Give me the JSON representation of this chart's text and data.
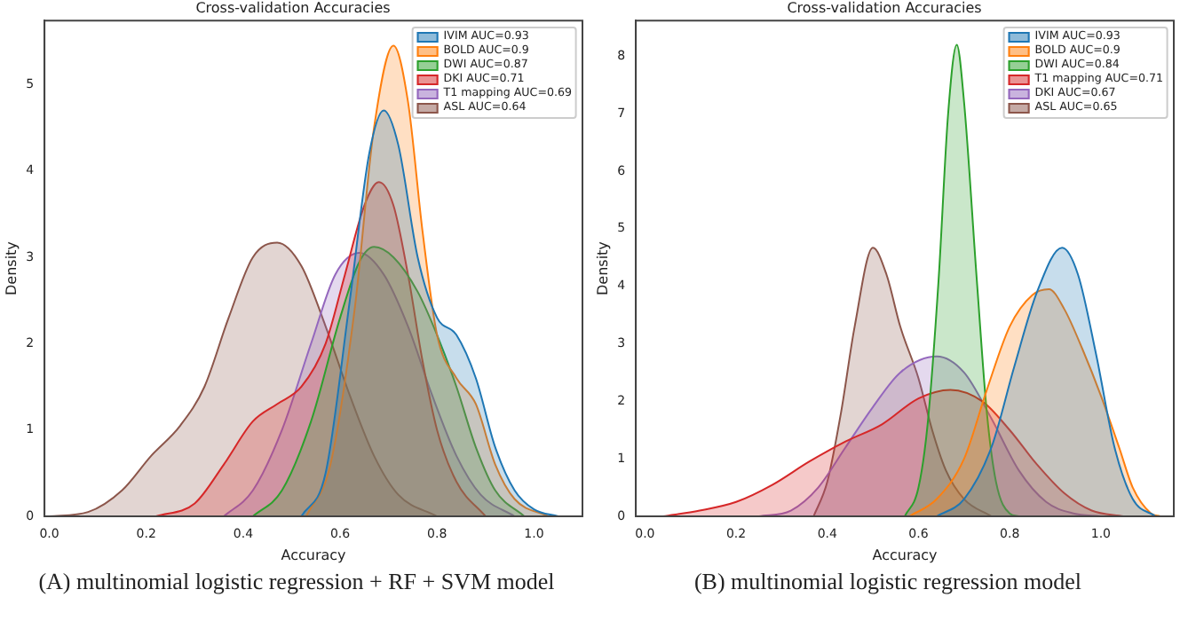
{
  "chart_data": [
    {
      "type": "area",
      "title": "Cross-validation Accuracies",
      "xlabel": "Accuracy",
      "ylabel": "Density",
      "legend": "top right",
      "grid": false,
      "marker": "none",
      "xlim": [
        -0.01,
        1.1
      ],
      "ylim": [
        0,
        5.74
      ],
      "xticks": [
        {
          "value": 0,
          "label": "0.0"
        },
        {
          "value": 0.2,
          "label": "0.2"
        },
        {
          "value": 0.4,
          "label": "0.4"
        },
        {
          "value": 0.6,
          "label": "0.6"
        },
        {
          "value": 0.8,
          "label": "0.8"
        },
        {
          "value": 1,
          "label": "1.0"
        }
      ],
      "yticks": [
        0,
        1,
        2,
        3,
        4,
        5
      ],
      "annotations": [
        "(A)  multinomial logistic regression + RF + SVM  model"
      ],
      "series": [
        {
          "name": "IVIM AUC=0.93",
          "color": "#1f77b4",
          "x": [
            0.52,
            0.57,
            0.62,
            0.66,
            0.69,
            0.72,
            0.76,
            0.8,
            0.84,
            0.88,
            0.92,
            0.96,
            1.0,
            1.05
          ],
          "values": [
            0,
            0.5,
            2.5,
            4.2,
            4.7,
            4.3,
            3.0,
            2.3,
            2.1,
            1.6,
            0.8,
            0.3,
            0.08,
            0
          ]
        },
        {
          "name": "BOLD AUC=0.9",
          "color": "#ff7f0e",
          "x": [
            0.53,
            0.58,
            0.63,
            0.67,
            0.71,
            0.74,
            0.77,
            0.8,
            0.84,
            0.88,
            0.92,
            0.96,
            1.03
          ],
          "values": [
            0,
            0.6,
            2.4,
            4.5,
            5.45,
            4.8,
            3.3,
            2.1,
            1.6,
            1.3,
            0.6,
            0.2,
            0
          ]
        },
        {
          "name": "DWI AUC=0.87",
          "color": "#2ca02c",
          "x": [
            0.42,
            0.48,
            0.54,
            0.6,
            0.64,
            0.67,
            0.71,
            0.76,
            0.8,
            0.84,
            0.88,
            0.92,
            0.98
          ],
          "values": [
            0,
            0.3,
            1.1,
            2.3,
            2.95,
            3.12,
            3.0,
            2.6,
            2.1,
            1.5,
            0.8,
            0.3,
            0
          ]
        },
        {
          "name": "DKI AUC=0.71",
          "color": "#d62728",
          "x": [
            0.22,
            0.3,
            0.36,
            0.42,
            0.47,
            0.52,
            0.57,
            0.61,
            0.65,
            0.68,
            0.71,
            0.74,
            0.77,
            0.8,
            0.84,
            0.9
          ],
          "values": [
            0,
            0.15,
            0.6,
            1.1,
            1.3,
            1.5,
            2.0,
            2.8,
            3.6,
            3.87,
            3.6,
            2.8,
            1.8,
            1.0,
            0.4,
            0
          ]
        },
        {
          "name": "T1 mapping AUC=0.69",
          "color": "#9467bd",
          "x": [
            0.36,
            0.42,
            0.48,
            0.54,
            0.59,
            0.64,
            0.69,
            0.74,
            0.79,
            0.84,
            0.89,
            0.96
          ],
          "values": [
            0,
            0.3,
            1.0,
            2.0,
            2.8,
            3.05,
            2.8,
            2.2,
            1.4,
            0.7,
            0.25,
            0
          ]
        },
        {
          "name": "ASL AUC=0.64",
          "color": "#8c564b",
          "x": [
            0.0,
            0.08,
            0.15,
            0.21,
            0.27,
            0.32,
            0.37,
            0.42,
            0.47,
            0.52,
            0.57,
            0.62,
            0.67,
            0.72,
            0.8
          ],
          "values": [
            0,
            0.05,
            0.3,
            0.7,
            1.05,
            1.5,
            2.3,
            3.0,
            3.17,
            2.9,
            2.2,
            1.4,
            0.7,
            0.25,
            0
          ]
        }
      ]
    },
    {
      "type": "area",
      "title": "Cross-validation Accuracies",
      "xlabel": "Accuracy",
      "ylabel": "Density",
      "legend": "top right",
      "grid": false,
      "marker": "none",
      "xlim": [
        -0.02,
        1.16
      ],
      "ylim": [
        0,
        8.62
      ],
      "xticks": [
        {
          "value": 0,
          "label": "0.0"
        },
        {
          "value": 0.2,
          "label": "0.2"
        },
        {
          "value": 0.4,
          "label": "0.4"
        },
        {
          "value": 0.6,
          "label": "0.6"
        },
        {
          "value": 0.8,
          "label": "0.8"
        },
        {
          "value": 1,
          "label": "1.0"
        }
      ],
      "yticks": [
        0,
        1,
        2,
        3,
        4,
        5,
        6,
        7,
        8
      ],
      "annotations": [
        "(B)  multinomial logistic regression model"
      ],
      "series": [
        {
          "name": "IVIM AUC=0.93",
          "color": "#1f77b4",
          "x": [
            0.64,
            0.7,
            0.76,
            0.81,
            0.86,
            0.915,
            0.95,
            0.99,
            1.03,
            1.07,
            1.12
          ],
          "values": [
            0,
            0.3,
            1.2,
            2.6,
            3.9,
            4.67,
            4.2,
            2.8,
            1.2,
            0.3,
            0
          ]
        },
        {
          "name": "BOLD AUC=0.9",
          "color": "#ff7f0e",
          "x": [
            0.58,
            0.64,
            0.7,
            0.75,
            0.8,
            0.85,
            0.886,
            0.92,
            0.96,
            1.0,
            1.04,
            1.07,
            1.11,
            1.13
          ],
          "values": [
            0,
            0.3,
            1.0,
            2.2,
            3.3,
            3.85,
            3.95,
            3.6,
            2.9,
            2.1,
            1.2,
            0.5,
            0.05,
            0
          ]
        },
        {
          "name": "DWI AUC=0.84",
          "color": "#2ca02c",
          "x": [
            0.57,
            0.6,
            0.62,
            0.644,
            0.665,
            0.684,
            0.7,
            0.728,
            0.75,
            0.77,
            0.8,
            0.82
          ],
          "values": [
            0,
            0.5,
            1.6,
            4.1,
            7.0,
            8.2,
            7.2,
            4.1,
            1.8,
            0.6,
            0.05,
            0
          ]
        },
        {
          "name": "T1 mapping AUC=0.71",
          "color": "#d62728",
          "x": [
            0.04,
            0.12,
            0.2,
            0.28,
            0.36,
            0.44,
            0.52,
            0.6,
            0.67,
            0.74,
            0.8,
            0.86,
            0.92,
            0.98,
            1.05
          ],
          "values": [
            0,
            0.1,
            0.25,
            0.55,
            0.95,
            1.3,
            1.6,
            2.05,
            2.2,
            2.0,
            1.5,
            0.9,
            0.4,
            0.1,
            0
          ]
        },
        {
          "name": "DKI AUC=0.67",
          "color": "#9467bd",
          "x": [
            0.25,
            0.32,
            0.38,
            0.44,
            0.5,
            0.56,
            0.64,
            0.7,
            0.76,
            0.82,
            0.88,
            0.94,
            1.0
          ],
          "values": [
            0,
            0.1,
            0.5,
            1.2,
            1.9,
            2.5,
            2.78,
            2.5,
            1.7,
            0.8,
            0.25,
            0.05,
            0
          ]
        },
        {
          "name": "ASL AUC=0.65",
          "color": "#8c564b",
          "x": [
            0.37,
            0.4,
            0.43,
            0.46,
            0.5,
            0.53,
            0.56,
            0.6,
            0.63,
            0.66,
            0.7,
            0.76
          ],
          "values": [
            0,
            0.6,
            1.8,
            3.3,
            4.67,
            4.2,
            3.3,
            2.4,
            1.5,
            0.8,
            0.3,
            0
          ]
        }
      ]
    }
  ]
}
